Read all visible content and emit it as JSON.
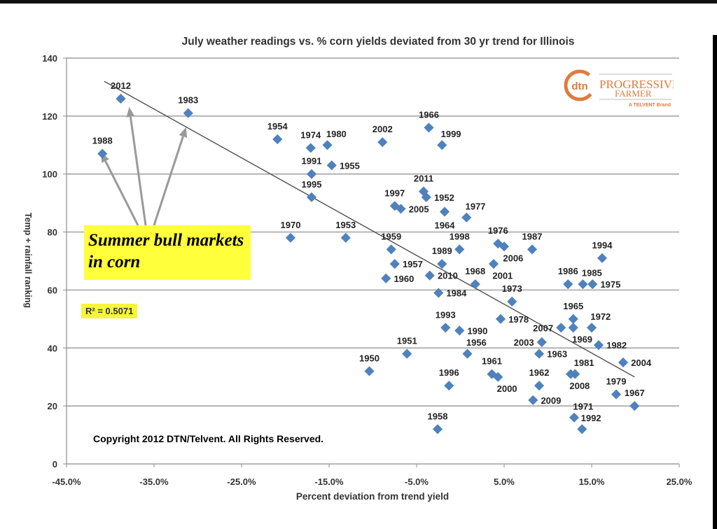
{
  "chart_data": {
    "type": "scatter",
    "title": "July weather readings vs. % corn yields deviated from 30 yr trend for Illinois",
    "xlabel": "Percent deviation from trend yield",
    "ylabel": "Temp + rainfall ranking",
    "xlim": [
      -45,
      25
    ],
    "ylim": [
      0,
      140
    ],
    "xticks": [
      "-45.0%",
      "-35.0%",
      "-25.0%",
      "-15.0%",
      "-5.0%",
      "5.0%",
      "15.0%",
      "25.0%"
    ],
    "yticks": [
      "0",
      "20",
      "40",
      "60",
      "80",
      "100",
      "120",
      "140"
    ],
    "grid": "horizontal",
    "marker_color": "#4f81bd",
    "points": [
      {
        "label": "2012",
        "x": -38.8,
        "y": 126
      },
      {
        "label": "1983",
        "x": -31.1,
        "y": 121
      },
      {
        "label": "1988",
        "x": -40.9,
        "y": 107
      },
      {
        "label": "1954",
        "x": -20.9,
        "y": 112
      },
      {
        "label": "1974",
        "x": -17.1,
        "y": 109
      },
      {
        "label": "1980",
        "x": -15.2,
        "y": 110
      },
      {
        "label": "1955",
        "x": -14.7,
        "y": 103
      },
      {
        "label": "1991",
        "x": -17.0,
        "y": 100
      },
      {
        "label": "1995",
        "x": -17.0,
        "y": 92
      },
      {
        "label": "1970",
        "x": -19.4,
        "y": 78
      },
      {
        "label": "1953",
        "x": -13.1,
        "y": 78
      },
      {
        "label": "2002",
        "x": -8.9,
        "y": 111
      },
      {
        "label": "1966",
        "x": -3.6,
        "y": 116
      },
      {
        "label": "1999",
        "x": -2.1,
        "y": 110
      },
      {
        "label": "2011",
        "x": -4.2,
        "y": 94
      },
      {
        "label": "1952",
        "x": -3.9,
        "y": 92
      },
      {
        "label": "1997",
        "x": -7.5,
        "y": 89
      },
      {
        "label": "2005",
        "x": -6.8,
        "y": 88
      },
      {
        "label": "1964",
        "x": -1.8,
        "y": 87
      },
      {
        "label": "1977",
        "x": 0.7,
        "y": 85
      },
      {
        "label": "1959",
        "x": -7.9,
        "y": 74
      },
      {
        "label": "1957",
        "x": -7.5,
        "y": 69
      },
      {
        "label": "1960",
        "x": -8.5,
        "y": 64
      },
      {
        "label": "1998",
        "x": -0.1,
        "y": 74
      },
      {
        "label": "1989",
        "x": -2.1,
        "y": 69
      },
      {
        "label": "2010",
        "x": -3.5,
        "y": 65
      },
      {
        "label": "1984",
        "x": -2.5,
        "y": 59
      },
      {
        "label": "1976",
        "x": 4.3,
        "y": 76
      },
      {
        "label": "2006",
        "x": 5.0,
        "y": 75
      },
      {
        "label": "2001",
        "x": 3.8,
        "y": 69
      },
      {
        "label": "1987",
        "x": 8.2,
        "y": 74
      },
      {
        "label": "1968",
        "x": 1.7,
        "y": 62
      },
      {
        "label": "1973",
        "x": 5.9,
        "y": 56
      },
      {
        "label": "1978",
        "x": 4.6,
        "y": 50
      },
      {
        "label": "1994",
        "x": 16.2,
        "y": 71
      },
      {
        "label": "1986",
        "x": 12.3,
        "y": 62
      },
      {
        "label": "1985",
        "x": 14.0,
        "y": 62
      },
      {
        "label": "1975",
        "x": 15.1,
        "y": 62
      },
      {
        "label": "1965",
        "x": 12.9,
        "y": 50
      },
      {
        "label": "1969",
        "x": 12.9,
        "y": 47
      },
      {
        "label": "2007",
        "x": 11.5,
        "y": 47
      },
      {
        "label": "2003",
        "x": 9.3,
        "y": 42
      },
      {
        "label": "1963",
        "x": 9.0,
        "y": 38
      },
      {
        "label": "1972",
        "x": 15.0,
        "y": 47
      },
      {
        "label": "1982",
        "x": 15.8,
        "y": 41
      },
      {
        "label": "2004",
        "x": 18.6,
        "y": 35
      },
      {
        "label": "1979",
        "x": 17.8,
        "y": 24
      },
      {
        "label": "1967",
        "x": 19.9,
        "y": 20
      },
      {
        "label": "2008",
        "x": 12.6,
        "y": 31
      },
      {
        "label": "1981",
        "x": 13.1,
        "y": 31
      },
      {
        "label": "1962",
        "x": 9.0,
        "y": 27
      },
      {
        "label": "2009",
        "x": 8.3,
        "y": 22
      },
      {
        "label": "1971",
        "x": 13.0,
        "y": 16
      },
      {
        "label": "1992",
        "x": 13.9,
        "y": 12
      },
      {
        "label": "1993",
        "x": -1.7,
        "y": 47
      },
      {
        "label": "1990",
        "x": -0.1,
        "y": 46
      },
      {
        "label": "1951",
        "x": -6.1,
        "y": 38
      },
      {
        "label": "1956",
        "x": 0.8,
        "y": 38
      },
      {
        "label": "1950",
        "x": -10.4,
        "y": 32
      },
      {
        "label": "1961",
        "x": 3.6,
        "y": 31
      },
      {
        "label": "2000",
        "x": 4.3,
        "y": 30
      },
      {
        "label": "1996",
        "x": -1.3,
        "y": 27
      },
      {
        "label": "1958",
        "x": -2.6,
        "y": 12
      }
    ],
    "trendline": {
      "x": [
        -40.7,
        19.9
      ],
      "y": [
        132,
        30
      ]
    },
    "r_squared_label": "R² = 0.5071",
    "annotation": "Summer bull markets in corn",
    "annotation_arrow_targets": [
      "1988",
      "2012",
      "1983"
    ],
    "copyright": "Copyright 2012 DTN/Telvent. All Rights Reserved.",
    "logo": {
      "mark": "dtn",
      "name": "PROGRESSIVE FARMER",
      "tagline": "A TELVENT Brand",
      "color": "#e07b3c"
    }
  }
}
